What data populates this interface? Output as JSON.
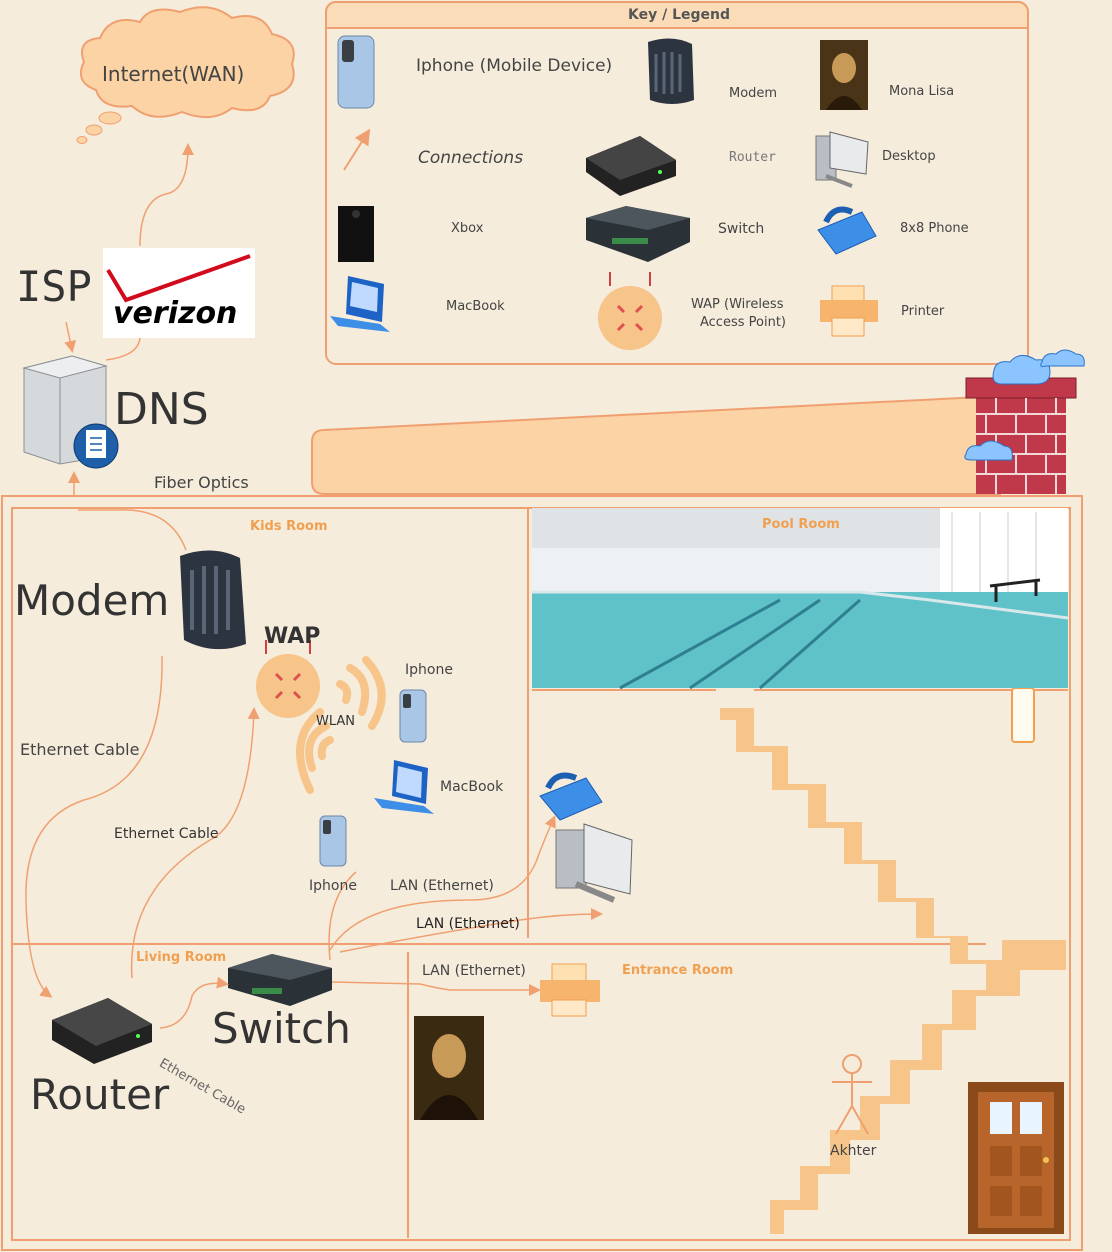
{
  "legend": {
    "title": "Key / Legend",
    "items": {
      "iphone": "Iphone (Mobile Device)",
      "modem": "Modem",
      "mona_lisa": "Mona Lisa",
      "connections": "Connections",
      "router": "Router",
      "desktop": "Desktop",
      "xbox": "Xbox",
      "switch": "Switch",
      "phone": "8x8 Phone",
      "macbook": "MacBook",
      "wap": "WAP (Wireless",
      "wap2": "Access Point)",
      "printer": "Printer"
    }
  },
  "top": {
    "internet": "Internet(WAN)",
    "isp": "ISP",
    "isp_brand": "verizon",
    "dns": "DNS",
    "fiber": "Fiber Optics"
  },
  "rooms": {
    "kids": "Kids Room",
    "pool": "Pool Room",
    "living": "Living Room",
    "entrance": "Entrance Room"
  },
  "labels": {
    "modem": "Modem",
    "wap": "WAP",
    "wlan": "WLAN",
    "iphone1": "Iphone",
    "iphone2": "Iphone",
    "macbook": "MacBook",
    "eth1": "Ethernet Cable",
    "eth2": "Ethernet Cable",
    "eth3": "Ethernet Cable",
    "lan1": "LAN (Ethernet)",
    "lan2": "LAN (Ethernet)",
    "lan3": "LAN (Ethernet)",
    "switch": "Switch",
    "router": "Router",
    "person": "Akhter"
  },
  "colors": {
    "background": "#f6ecdc",
    "line": "#f0a070",
    "accent": "#f0a050",
    "pool": "#6cc7c7",
    "brick": "#c0394a"
  }
}
